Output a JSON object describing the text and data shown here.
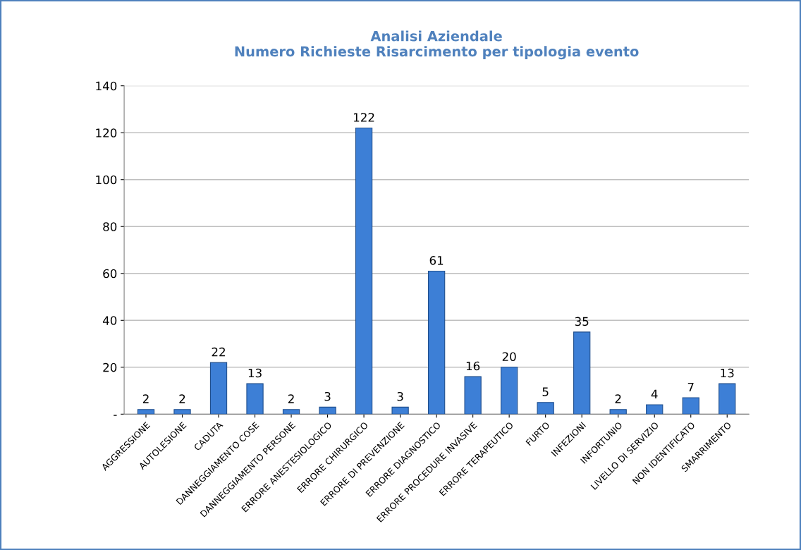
{
  "chart_data": {
    "type": "bar",
    "title": "Analisi Aziendale\nNumero Richieste Risarcimento per tipologia evento",
    "categories": [
      "AGGRESSIONE",
      "AUTOLESIONE",
      "CADUTA",
      "DANNEGGIAMENTO COSE",
      "DANNEGGIAMENTO PERSONE",
      "ERRORE ANESTESIOLOGICO",
      "ERRORE CHIRURGICO",
      "ERRORE DI PREVENZIONE",
      "ERRORE DIAGNOSTICO",
      "ERRORE PROCEDURE INVASIVE",
      "ERRORE TERAPEUTICO",
      "FURTO",
      "INFEZIONI",
      "INFORTUNIO",
      "LIVELLO DI SERVIZIO",
      "NON IDENTIFICATO",
      "SMARRIMENTO"
    ],
    "values": [
      2,
      2,
      22,
      13,
      2,
      3,
      122,
      3,
      61,
      16,
      20,
      5,
      35,
      2,
      4,
      7,
      13
    ],
    "color": "#3d7fd6",
    "ylim": [
      0,
      140
    ],
    "yticks": [
      {
        "value": 0,
        "label": "-"
      },
      20,
      40,
      60,
      80,
      100,
      120,
      140
    ],
    "grid": "y",
    "data_labels": true,
    "legend": false
  }
}
